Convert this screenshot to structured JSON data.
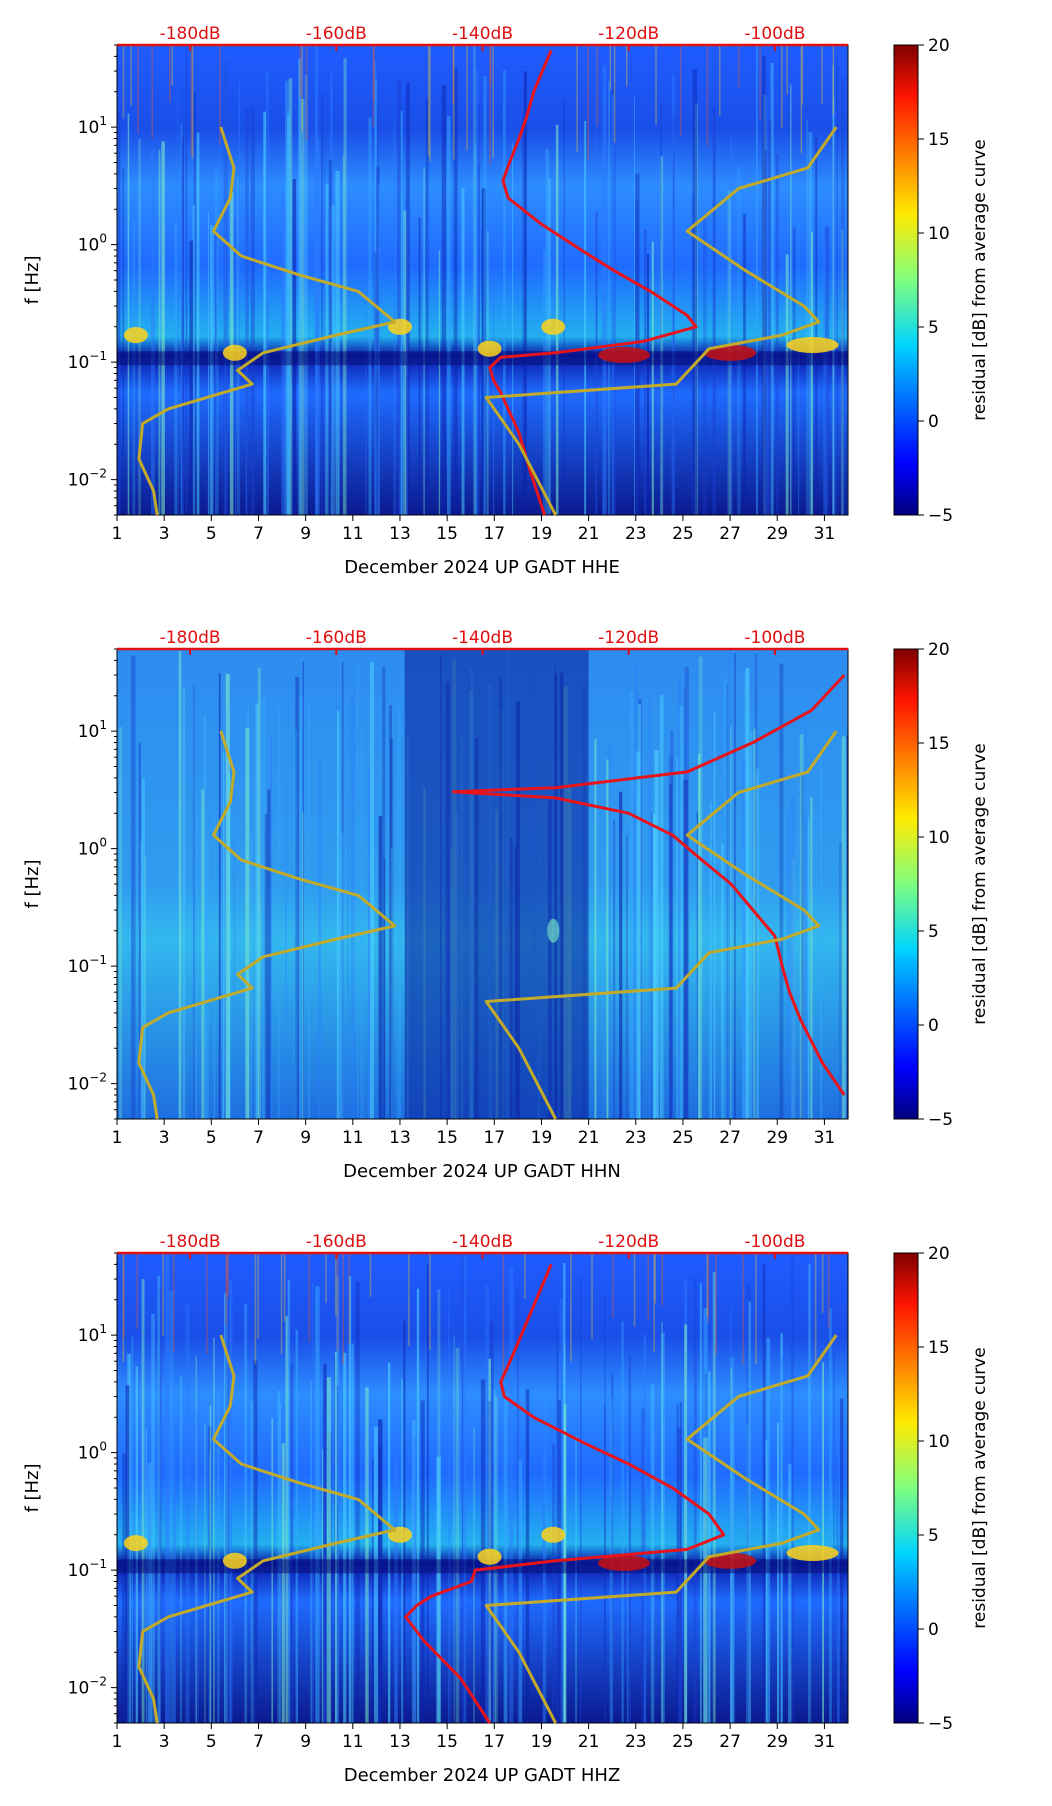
{
  "figure": {
    "colorbar": {
      "label": "residual [dB] from average curve",
      "ticks": [
        -5,
        0,
        5,
        10,
        15,
        20
      ],
      "tick_labels": [
        "−5",
        "0",
        "5",
        "10",
        "15",
        "20"
      ]
    },
    "ylabel": "f [Hz]",
    "x_tick_labels": [
      "1",
      "3",
      "5",
      "7",
      "9",
      "11",
      "13",
      "15",
      "17",
      "19",
      "21",
      "23",
      "25",
      "27",
      "29",
      "31"
    ],
    "y_tick_labels": [
      "10^-2",
      "10^-1",
      "10^0",
      "10^1"
    ],
    "db_labels": [
      "-180dB",
      "-160dB",
      "-140dB",
      "-120dB",
      "-100dB"
    ],
    "colors": {
      "red_curve": "#e8141c",
      "olive_curve": "#c2aa2a",
      "db_label": "#e01010"
    }
  },
  "chart_data": [
    {
      "type": "heatmap",
      "title": "",
      "xlabel": "December 2024 UP GADT  HHE",
      "ylabel": "f [Hz]",
      "xlim": [
        1,
        32
      ],
      "ylim": [
        0.005,
        50
      ],
      "yscale": "log",
      "colorbar_range": [
        -5,
        20
      ],
      "db_axis": {
        "labels": [
          "-180dB",
          "-160dB",
          "-140dB",
          "-120dB",
          "-100dB"
        ],
        "values": [
          -180,
          -160,
          -140,
          -120,
          -100
        ],
        "range": [
          -190,
          -90
        ]
      },
      "curves": [
        {
          "name": "red",
          "color": "#e8141c",
          "points": [
            [
              -130.6,
              45
            ],
            [
              -131.8,
              30
            ],
            [
              -133.0,
              20
            ],
            [
              -134.0,
              12
            ],
            [
              -135.0,
              8
            ],
            [
              -136.3,
              5
            ],
            [
              -137.2,
              3.5
            ],
            [
              -136.5,
              2.5
            ],
            [
              -132,
              1.5
            ],
            [
              -126.5,
              0.9
            ],
            [
              -122,
              0.6
            ],
            [
              -117,
              0.4
            ],
            [
              -112,
              0.25
            ],
            [
              -110.8,
              0.2
            ],
            [
              -118,
              0.15
            ],
            [
              -130,
              0.12
            ],
            [
              -137.5,
              0.11
            ],
            [
              -139,
              0.09
            ],
            [
              -138.5,
              0.07
            ],
            [
              -137.5,
              0.055
            ],
            [
              -136.5,
              0.04
            ],
            [
              -135,
              0.025
            ],
            [
              -133.5,
              0.012
            ],
            [
              -131.5,
              0.005
            ]
          ]
        },
        {
          "name": "olive-low",
          "color": "#c2aa2a",
          "points": [
            [
              -175.8,
              10
            ],
            [
              -174,
              4.5
            ],
            [
              -174.5,
              2.5
            ],
            [
              -176.8,
              1.3
            ],
            [
              -173,
              0.8
            ],
            [
              -165,
              0.55
            ],
            [
              -157,
              0.4
            ],
            [
              -152,
              0.22
            ],
            [
              -160,
              0.17
            ],
            [
              -170,
              0.12
            ],
            [
              -173.5,
              0.085
            ],
            [
              -171.5,
              0.065
            ],
            [
              -183,
              0.04
            ],
            [
              -186.5,
              0.03
            ],
            [
              -187,
              0.015
            ],
            [
              -185,
              0.008
            ],
            [
              -184.5,
              0.005
            ]
          ]
        },
        {
          "name": "olive-high",
          "color": "#c2aa2a",
          "points": [
            [
              -91.6,
              10
            ],
            [
              -95.5,
              4.5
            ],
            [
              -105,
              3
            ],
            [
              -112,
              1.3
            ],
            [
              -104,
              0.6
            ],
            [
              -96,
              0.3
            ],
            [
              -94,
              0.22
            ],
            [
              -99,
              0.17
            ],
            [
              -109,
              0.13
            ],
            [
              -113.5,
              0.065
            ],
            [
              -139.5,
              0.05
            ],
            [
              -135,
              0.02
            ],
            [
              -130,
              0.005
            ]
          ]
        }
      ]
    },
    {
      "type": "heatmap",
      "title": "",
      "xlabel": "December 2024 UP GADT  HHN",
      "ylabel": "f [Hz]",
      "xlim": [
        1,
        32
      ],
      "ylim": [
        0.005,
        50
      ],
      "yscale": "log",
      "colorbar_range": [
        -5,
        20
      ],
      "db_axis": {
        "labels": [
          "-180dB",
          "-160dB",
          "-140dB",
          "-120dB",
          "-100dB"
        ],
        "values": [
          -180,
          -160,
          -140,
          -120,
          -100
        ],
        "range": [
          -190,
          -90
        ]
      },
      "curves": [
        {
          "name": "red",
          "color": "#e8141c",
          "points": [
            [
              -90.5,
              30
            ],
            [
              -95,
              15
            ],
            [
              -103,
              8
            ],
            [
              -112,
              4.5
            ],
            [
              -130,
              3.3
            ],
            [
              -144,
              3.05
            ],
            [
              -130,
              2.7
            ],
            [
              -120,
              2.0
            ],
            [
              -114,
              1.3
            ],
            [
              -110,
              0.8
            ],
            [
              -106,
              0.5
            ],
            [
              -103,
              0.3
            ],
            [
              -100,
              0.18
            ],
            [
              -99,
              0.1
            ],
            [
              -98,
              0.06
            ],
            [
              -96.5,
              0.035
            ],
            [
              -93.5,
              0.015
            ],
            [
              -90.5,
              0.008
            ]
          ]
        },
        {
          "name": "olive-low",
          "color": "#c2aa2a",
          "points": [
            [
              -175.8,
              10
            ],
            [
              -174,
              4.5
            ],
            [
              -174.5,
              2.5
            ],
            [
              -176.8,
              1.3
            ],
            [
              -173,
              0.8
            ],
            [
              -165,
              0.55
            ],
            [
              -157,
              0.4
            ],
            [
              -152,
              0.22
            ],
            [
              -160,
              0.17
            ],
            [
              -170,
              0.12
            ],
            [
              -173.5,
              0.085
            ],
            [
              -171.5,
              0.065
            ],
            [
              -183,
              0.04
            ],
            [
              -186.5,
              0.03
            ],
            [
              -187,
              0.015
            ],
            [
              -185,
              0.008
            ],
            [
              -184.5,
              0.005
            ]
          ]
        },
        {
          "name": "olive-high",
          "color": "#c2aa2a",
          "points": [
            [
              -91.6,
              10
            ],
            [
              -95.5,
              4.5
            ],
            [
              -105,
              3
            ],
            [
              -112,
              1.3
            ],
            [
              -104,
              0.6
            ],
            [
              -96,
              0.3
            ],
            [
              -94,
              0.22
            ],
            [
              -99,
              0.17
            ],
            [
              -109,
              0.13
            ],
            [
              -113.5,
              0.065
            ],
            [
              -139.5,
              0.05
            ],
            [
              -135,
              0.02
            ],
            [
              -130,
              0.005
            ]
          ]
        }
      ]
    },
    {
      "type": "heatmap",
      "title": "",
      "xlabel": "December 2024 UP GADT  HHZ",
      "ylabel": "f [Hz]",
      "xlim": [
        1,
        32
      ],
      "ylim": [
        0.005,
        50
      ],
      "yscale": "log",
      "colorbar_range": [
        -5,
        20
      ],
      "db_axis": {
        "labels": [
          "-180dB",
          "-160dB",
          "-140dB",
          "-120dB",
          "-100dB"
        ],
        "values": [
          -180,
          -160,
          -140,
          -120,
          -100
        ],
        "range": [
          -190,
          -90
        ]
      },
      "curves": [
        {
          "name": "red",
          "color": "#e8141c",
          "points": [
            [
              -130.6,
              40
            ],
            [
              -132,
              25
            ],
            [
              -133.5,
              15
            ],
            [
              -135,
              9
            ],
            [
              -136.5,
              5.5
            ],
            [
              -137.5,
              4
            ],
            [
              -137,
              3
            ],
            [
              -133,
              2
            ],
            [
              -126,
              1.2
            ],
            [
              -120,
              0.8
            ],
            [
              -114,
              0.5
            ],
            [
              -109,
              0.3
            ],
            [
              -107,
              0.2
            ],
            [
              -112,
              0.15
            ],
            [
              -130,
              0.12
            ],
            [
              -141,
              0.1
            ],
            [
              -141.5,
              0.08
            ],
            [
              -147,
              0.06
            ],
            [
              -149,
              0.05
            ],
            [
              -150.5,
              0.04
            ],
            [
              -148,
              0.025
            ],
            [
              -143,
              0.012
            ],
            [
              -139,
              0.005
            ]
          ]
        },
        {
          "name": "olive-low",
          "color": "#c2aa2a",
          "points": [
            [
              -175.8,
              10
            ],
            [
              -174,
              4.5
            ],
            [
              -174.5,
              2.5
            ],
            [
              -176.8,
              1.3
            ],
            [
              -173,
              0.8
            ],
            [
              -165,
              0.55
            ],
            [
              -157,
              0.4
            ],
            [
              -152,
              0.22
            ],
            [
              -160,
              0.17
            ],
            [
              -170,
              0.12
            ],
            [
              -173.5,
              0.085
            ],
            [
              -171.5,
              0.065
            ],
            [
              -183,
              0.04
            ],
            [
              -186.5,
              0.03
            ],
            [
              -187,
              0.015
            ],
            [
              -185,
              0.008
            ],
            [
              -184.5,
              0.005
            ]
          ]
        },
        {
          "name": "olive-high",
          "color": "#c2aa2a",
          "points": [
            [
              -91.6,
              10
            ],
            [
              -95.5,
              4.5
            ],
            [
              -105,
              3
            ],
            [
              -112,
              1.3
            ],
            [
              -104,
              0.6
            ],
            [
              -96,
              0.3
            ],
            [
              -94,
              0.22
            ],
            [
              -99,
              0.17
            ],
            [
              -109,
              0.13
            ],
            [
              -113.5,
              0.065
            ],
            [
              -139.5,
              0.05
            ],
            [
              -135,
              0.02
            ],
            [
              -130,
              0.005
            ]
          ]
        }
      ]
    }
  ]
}
